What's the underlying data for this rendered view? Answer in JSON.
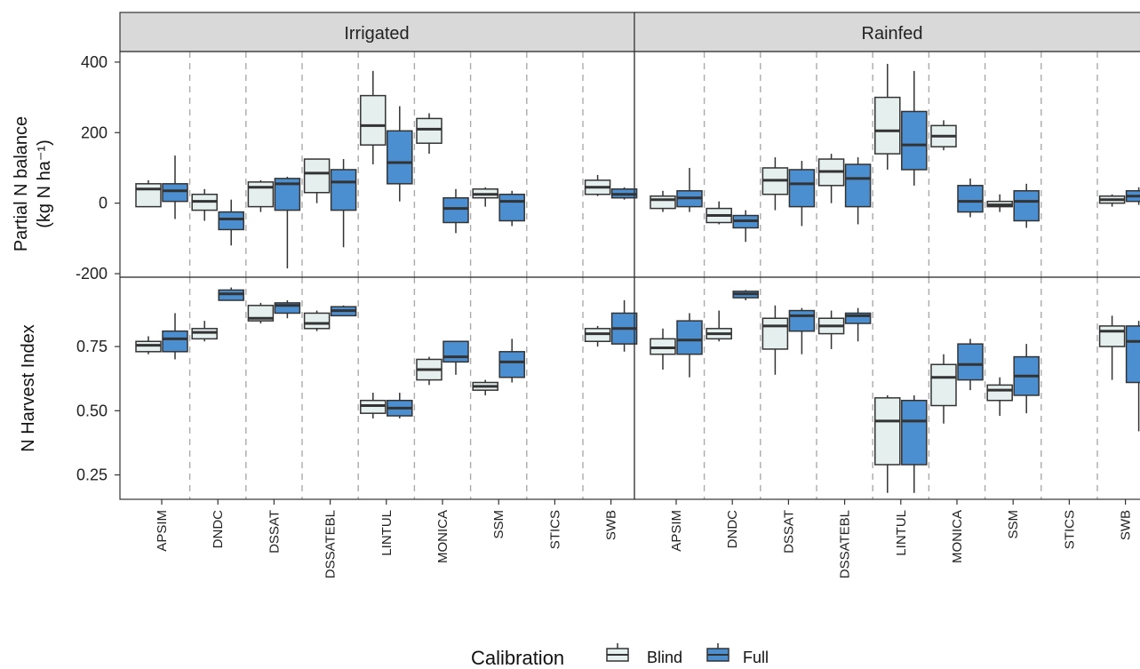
{
  "chart_data": {
    "type": "boxplot",
    "facets": [
      "Irrigated",
      "Rainfed"
    ],
    "models": [
      "APSIM",
      "DNDC",
      "DSSAT",
      "DSSATEBL",
      "LINTUL",
      "MONICA",
      "SSM",
      "STICS",
      "SWB"
    ],
    "legend": {
      "title": "Calibration",
      "entries": [
        "Blind",
        "Full"
      ],
      "placement": "bottom"
    },
    "colors": {
      "Blind": "#e4efee",
      "Full": "#4b8fd0"
    },
    "panels": [
      {
        "ylabel": [
          "Partial N balance",
          "(kg N ha⁻¹)"
        ],
        "yticks": [
          "400",
          "200",
          "0",
          "-200"
        ],
        "ytick_values": [
          400,
          200,
          0,
          -200
        ],
        "ylim": [
          -210,
          430
        ],
        "boxes": {
          "Irrigated": {
            "APSIM": {
              "Blind": [
                -10,
                -10,
                40,
                55,
                65
              ],
              "Full": [
                -45,
                5,
                35,
                55,
                135
              ]
            },
            "DNDC": {
              "Blind": [
                -50,
                -20,
                5,
                25,
                40
              ],
              "Full": [
                -120,
                -75,
                -45,
                -25,
                10
              ]
            },
            "DSSAT": {
              "Blind": [
                -25,
                -10,
                45,
                60,
                65
              ],
              "Full": [
                -185,
                -20,
                55,
                70,
                75
              ]
            },
            "DSSATEBL": {
              "Blind": [
                0,
                30,
                85,
                125,
                125
              ],
              "Full": [
                -125,
                -20,
                60,
                95,
                125
              ]
            },
            "LINTUL": {
              "Blind": [
                110,
                165,
                220,
                305,
                375
              ],
              "Full": [
                5,
                55,
                115,
                205,
                275
              ]
            },
            "MONICA": {
              "Blind": [
                140,
                170,
                210,
                240,
                255
              ],
              "Full": [
                -85,
                -55,
                -15,
                15,
                40
              ]
            },
            "SSM": {
              "Blind": [
                -10,
                15,
                25,
                40,
                45
              ],
              "Full": [
                -65,
                -50,
                5,
                25,
                35
              ]
            },
            "SWB": {
              "Blind": [
                20,
                25,
                45,
                65,
                80
              ],
              "Full": [
                10,
                15,
                25,
                40,
                45
              ]
            }
          },
          "Rainfed": {
            "APSIM": {
              "Blind": [
                -25,
                -15,
                10,
                20,
                35
              ],
              "Full": [
                -25,
                -10,
                15,
                35,
                100
              ]
            },
            "DNDC": {
              "Blind": [
                -60,
                -55,
                -35,
                -15,
                5
              ],
              "Full": [
                -110,
                -70,
                -50,
                -35,
                -20
              ]
            },
            "DSSAT": {
              "Blind": [
                -20,
                25,
                65,
                100,
                130
              ],
              "Full": [
                -65,
                -10,
                55,
                95,
                120
              ]
            },
            "DSSATEBL": {
              "Blind": [
                0,
                50,
                90,
                125,
                140
              ],
              "Full": [
                -60,
                -10,
                70,
                110,
                130
              ]
            },
            "LINTUL": {
              "Blind": [
                95,
                140,
                205,
                300,
                395
              ],
              "Full": [
                50,
                95,
                165,
                260,
                375
              ]
            },
            "MONICA": {
              "Blind": [
                150,
                160,
                190,
                220,
                235
              ],
              "Full": [
                -40,
                -25,
                5,
                50,
                70
              ]
            },
            "SSM": {
              "Blind": [
                -25,
                -10,
                -5,
                5,
                25
              ],
              "Full": [
                -70,
                -50,
                5,
                35,
                55
              ]
            },
            "SWB": {
              "Blind": [
                -10,
                0,
                10,
                20,
                25
              ],
              "Full": [
                -5,
                5,
                20,
                35,
                45
              ]
            }
          }
        }
      },
      {
        "ylabel": [
          "N Harvest Index"
        ],
        "yticks": [
          "0.75",
          "0.50",
          "0.25"
        ],
        "ytick_values": [
          0.75,
          0.5,
          0.25
        ],
        "ylim": [
          0.155,
          1.02
        ],
        "boxes": {
          "Irrigated": {
            "APSIM": {
              "Blind": [
                0.72,
                0.73,
                0.755,
                0.77,
                0.79
              ],
              "Full": [
                0.7,
                0.73,
                0.78,
                0.81,
                0.88
              ]
            },
            "DNDC": {
              "Blind": [
                0.77,
                0.78,
                0.805,
                0.82,
                0.85
              ],
              "Full": [
                0.93,
                0.93,
                0.955,
                0.97,
                0.98
              ]
            },
            "DSSAT": {
              "Blind": [
                0.84,
                0.85,
                0.86,
                0.91,
                0.92
              ],
              "Full": [
                0.86,
                0.88,
                0.91,
                0.92,
                0.93
              ]
            },
            "DSSATEBL": {
              "Blind": [
                0.81,
                0.82,
                0.84,
                0.88,
                0.89
              ],
              "Full": [
                0.87,
                0.87,
                0.89,
                0.905,
                0.91
              ]
            },
            "LINTUL": {
              "Blind": [
                0.47,
                0.49,
                0.52,
                0.54,
                0.57
              ],
              "Full": [
                0.47,
                0.48,
                0.51,
                0.54,
                0.57
              ]
            },
            "MONICA": {
              "Blind": [
                0.6,
                0.62,
                0.66,
                0.7,
                0.71
              ],
              "Full": [
                0.64,
                0.69,
                0.71,
                0.77,
                0.77
              ]
            },
            "SSM": {
              "Blind": [
                0.56,
                0.58,
                0.595,
                0.61,
                0.62
              ],
              "Full": [
                0.61,
                0.63,
                0.69,
                0.73,
                0.78
              ]
            },
            "SWB": {
              "Blind": [
                0.75,
                0.77,
                0.8,
                0.82,
                0.83
              ],
              "Full": [
                0.73,
                0.76,
                0.82,
                0.88,
                0.93
              ]
            }
          },
          "Rainfed": {
            "APSIM": {
              "Blind": [
                0.66,
                0.72,
                0.745,
                0.78,
                0.82
              ],
              "Full": [
                0.63,
                0.72,
                0.775,
                0.85,
                0.88
              ]
            },
            "DNDC": {
              "Blind": [
                0.77,
                0.78,
                0.8,
                0.82,
                0.89
              ],
              "Full": [
                0.93,
                0.94,
                0.955,
                0.965,
                0.97
              ]
            },
            "DSSAT": {
              "Blind": [
                0.64,
                0.74,
                0.83,
                0.86,
                0.91
              ],
              "Full": [
                0.72,
                0.81,
                0.87,
                0.89,
                0.9
              ]
            },
            "DSSATEBL": {
              "Blind": [
                0.74,
                0.8,
                0.83,
                0.86,
                0.89
              ],
              "Full": [
                0.77,
                0.84,
                0.87,
                0.88,
                0.9
              ]
            },
            "LINTUL": {
              "Blind": [
                0.18,
                0.29,
                0.46,
                0.55,
                0.56
              ],
              "Full": [
                0.18,
                0.29,
                0.46,
                0.54,
                0.56
              ]
            },
            "MONICA": {
              "Blind": [
                0.45,
                0.52,
                0.63,
                0.68,
                0.72
              ],
              "Full": [
                0.58,
                0.62,
                0.68,
                0.76,
                0.78
              ]
            },
            "SSM": {
              "Blind": [
                0.48,
                0.54,
                0.58,
                0.6,
                0.63
              ],
              "Full": [
                0.49,
                0.56,
                0.635,
                0.71,
                0.76
              ]
            },
            "SWB": {
              "Blind": [
                0.62,
                0.75,
                0.81,
                0.83,
                0.87
              ],
              "Full": [
                0.42,
                0.61,
                0.77,
                0.83,
                0.85
              ]
            }
          }
        }
      }
    ]
  }
}
